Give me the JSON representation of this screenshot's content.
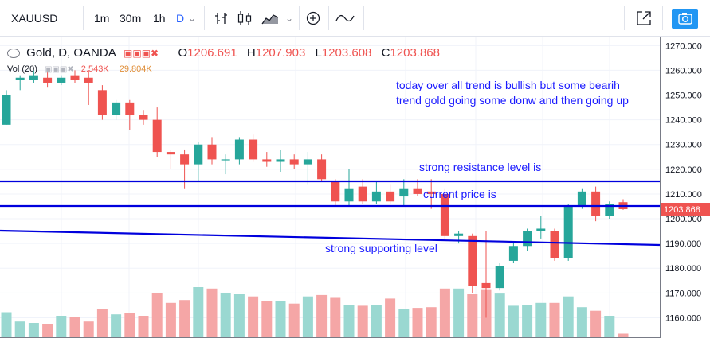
{
  "toolbar": {
    "symbol": "XAUUSD",
    "intervals": [
      "1m",
      "30m",
      "1h",
      "D"
    ],
    "active_interval": "D",
    "icons": [
      "bar-style-icon",
      "candles-icon",
      "area-icon",
      "chevron-down-icon",
      "add-compare-icon",
      "indicators-icon",
      "fullscreen-icon",
      "camera-icon"
    ]
  },
  "legend": {
    "title": "Gold, D, OANDA",
    "open_label": "O",
    "open": "1206.691",
    "high_label": "H",
    "high": "1207.903",
    "low_label": "L",
    "low": "1203.608",
    "close_label": "C",
    "close": "1203.868"
  },
  "volume": {
    "label": "Vol (20)",
    "value1": "2.543K",
    "value2": "29.804K"
  },
  "annotations": {
    "text1": "today over all trend is bullish but some bearih",
    "text2": "trend gold going some donw and then going up",
    "resistance": "strong resistance level is",
    "current": "current price is",
    "support": "strong supporting level"
  },
  "colors": {
    "up": "#26a69a",
    "down": "#ef5350",
    "vol_up": "#9ad8d1",
    "vol_down": "#f5a6a6",
    "line": "#0000dd",
    "accent": "#2962ff"
  },
  "chart_data": {
    "type": "candlestick",
    "y_ticks": [
      "1270.000",
      "1260.000",
      "1250.000",
      "1240.000",
      "1230.000",
      "1220.000",
      "1210.000",
      "1200.000",
      "1190.000",
      "1180.000",
      "1170.000",
      "1160.000"
    ],
    "ylim": [
      1155,
      1273
    ],
    "last_price_label": "1203.868",
    "candles": [
      {
        "o": 1238,
        "h": 1252,
        "l": 1238,
        "c": 1250
      },
      {
        "o": 1256,
        "h": 1258,
        "l": 1252,
        "c": 1257
      },
      {
        "o": 1256,
        "h": 1260,
        "l": 1255,
        "c": 1258
      },
      {
        "o": 1257,
        "h": 1260,
        "l": 1253,
        "c": 1255
      },
      {
        "o": 1255,
        "h": 1258,
        "l": 1254,
        "c": 1257
      },
      {
        "o": 1258,
        "h": 1260,
        "l": 1255,
        "c": 1256
      },
      {
        "o": 1257,
        "h": 1260,
        "l": 1246,
        "c": 1255
      },
      {
        "o": 1252,
        "h": 1254,
        "l": 1240,
        "c": 1242
      },
      {
        "o": 1242,
        "h": 1248,
        "l": 1240,
        "c": 1247
      },
      {
        "o": 1247,
        "h": 1248,
        "l": 1236,
        "c": 1242
      },
      {
        "o": 1242,
        "h": 1244,
        "l": 1238,
        "c": 1240
      },
      {
        "o": 1240,
        "h": 1245,
        "l": 1225,
        "c": 1227
      },
      {
        "o": 1227,
        "h": 1228,
        "l": 1220,
        "c": 1226
      },
      {
        "o": 1226,
        "h": 1228,
        "l": 1212,
        "c": 1222
      },
      {
        "o": 1222,
        "h": 1231,
        "l": 1215,
        "c": 1230
      },
      {
        "o": 1230,
        "h": 1233,
        "l": 1222,
        "c": 1224
      },
      {
        "o": 1224,
        "h": 1226,
        "l": 1218,
        "c": 1224
      },
      {
        "o": 1224,
        "h": 1233,
        "l": 1222,
        "c": 1232
      },
      {
        "o": 1232,
        "h": 1234,
        "l": 1223,
        "c": 1224
      },
      {
        "o": 1224,
        "h": 1227,
        "l": 1221,
        "c": 1223
      },
      {
        "o": 1223,
        "h": 1228,
        "l": 1219,
        "c": 1224
      },
      {
        "o": 1224,
        "h": 1226,
        "l": 1220,
        "c": 1222
      },
      {
        "o": 1222,
        "h": 1227,
        "l": 1214,
        "c": 1224
      },
      {
        "o": 1224,
        "h": 1226,
        "l": 1215,
        "c": 1216
      },
      {
        "o": 1215,
        "h": 1216,
        "l": 1205,
        "c": 1207
      },
      {
        "o": 1207,
        "h": 1220,
        "l": 1205,
        "c": 1212
      },
      {
        "o": 1213,
        "h": 1216,
        "l": 1206,
        "c": 1207
      },
      {
        "o": 1207,
        "h": 1215,
        "l": 1206,
        "c": 1211
      },
      {
        "o": 1211,
        "h": 1214,
        "l": 1206,
        "c": 1207
      },
      {
        "o": 1209,
        "h": 1216,
        "l": 1205,
        "c": 1212
      },
      {
        "o": 1212,
        "h": 1216,
        "l": 1209,
        "c": 1210
      },
      {
        "o": 1211,
        "h": 1216,
        "l": 1204,
        "c": 1210
      },
      {
        "o": 1210,
        "h": 1212,
        "l": 1191,
        "c": 1193
      },
      {
        "o": 1193,
        "h": 1195,
        "l": 1190,
        "c": 1194
      },
      {
        "o": 1193,
        "h": 1194,
        "l": 1170,
        "c": 1173
      },
      {
        "o": 1174,
        "h": 1195,
        "l": 1160,
        "c": 1172
      },
      {
        "o": 1172,
        "h": 1182,
        "l": 1171,
        "c": 1181
      },
      {
        "o": 1183,
        "h": 1191,
        "l": 1182,
        "c": 1189
      },
      {
        "o": 1189,
        "h": 1196,
        "l": 1187,
        "c": 1195
      },
      {
        "o": 1195,
        "h": 1201,
        "l": 1192,
        "c": 1196
      },
      {
        "o": 1195,
        "h": 1196,
        "l": 1183,
        "c": 1184
      },
      {
        "o": 1184,
        "h": 1206,
        "l": 1183,
        "c": 1205
      },
      {
        "o": 1205,
        "h": 1212,
        "l": 1204,
        "c": 1211
      },
      {
        "o": 1211,
        "h": 1213,
        "l": 1199,
        "c": 1201
      },
      {
        "o": 1201,
        "h": 1207,
        "l": 1200,
        "c": 1206
      },
      {
        "o": 1206.691,
        "h": 1207.903,
        "l": 1203.608,
        "c": 1203.868
      }
    ],
    "volume_levels": [
      0.35,
      0.22,
      0.2,
      0.18,
      0.3,
      0.28,
      0.22,
      0.4,
      0.32,
      0.34,
      0.3,
      0.62,
      0.48,
      0.52,
      0.7,
      0.68,
      0.62,
      0.6,
      0.57,
      0.5,
      0.5,
      0.47,
      0.57,
      0.59,
      0.55,
      0.45,
      0.44,
      0.45,
      0.54,
      0.4,
      0.41,
      0.42,
      0.68,
      0.68,
      0.6,
      0.66,
      0.61,
      0.44,
      0.45,
      0.48,
      0.48,
      0.57,
      0.42,
      0.37,
      0.3,
      0.05
    ]
  }
}
